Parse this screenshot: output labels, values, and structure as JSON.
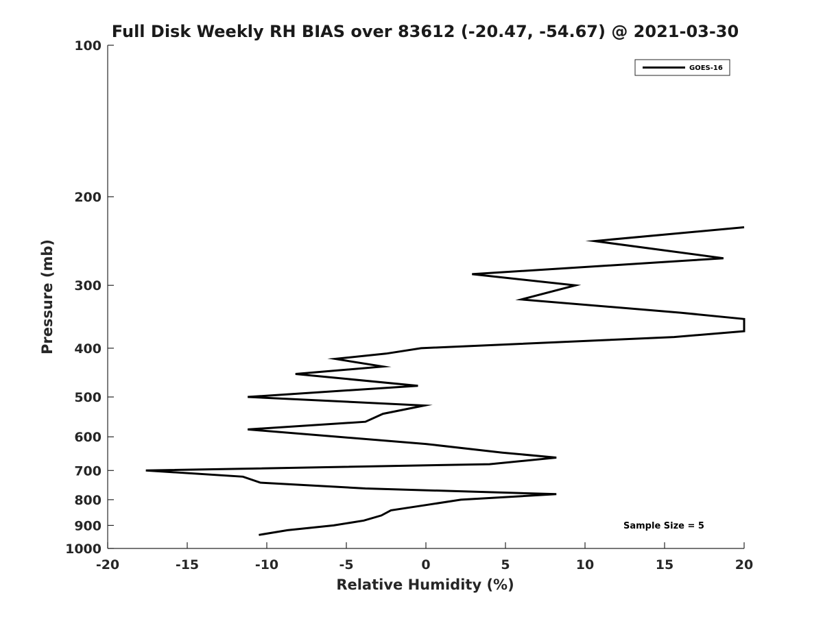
{
  "chart_data": {
    "type": "line",
    "title": "Full Disk Weekly RH BIAS over 83612 (-20.47, -54.67) @ 2021-03-30",
    "xlabel": "Relative Humidity (%)",
    "ylabel": "Pressure (mb)",
    "xlim": [
      -20,
      20
    ],
    "ylim": [
      100,
      1000
    ],
    "y_scale": "log",
    "y_reversed": true,
    "xticks": [
      -20,
      -15,
      -10,
      -5,
      0,
      5,
      10,
      15,
      20
    ],
    "xtick_labels": [
      "-20",
      "-15",
      "-10",
      "-5",
      "0",
      "5",
      "10",
      "15",
      "20"
    ],
    "yticks": [
      100,
      200,
      300,
      400,
      500,
      600,
      700,
      800,
      900,
      1000
    ],
    "ytick_labels": [
      "100",
      "200",
      "300",
      "400",
      "500",
      "600",
      "700",
      "800",
      "900",
      "1000"
    ],
    "legend_position": "top-right",
    "grid": false,
    "series": [
      {
        "name": "GOES-16",
        "color": "#000000",
        "points": [
          {
            "p": 230,
            "rh": 20.0
          },
          {
            "p": 245,
            "rh": 10.6
          },
          {
            "p": 265,
            "rh": 18.7
          },
          {
            "p": 285,
            "rh": 2.9
          },
          {
            "p": 300,
            "rh": 9.4
          },
          {
            "p": 320,
            "rh": 6.0
          },
          {
            "p": 340,
            "rh": 16.0
          },
          {
            "p": 350,
            "rh": 20.0
          },
          {
            "p": 370,
            "rh": 20.0
          },
          {
            "p": 380,
            "rh": 15.6
          },
          {
            "p": 400,
            "rh": -0.3
          },
          {
            "p": 410,
            "rh": -2.5
          },
          {
            "p": 420,
            "rh": -5.7
          },
          {
            "p": 435,
            "rh": -2.7
          },
          {
            "p": 450,
            "rh": -8.2
          },
          {
            "p": 475,
            "rh": -0.5
          },
          {
            "p": 500,
            "rh": -11.2
          },
          {
            "p": 520,
            "rh": -0.1
          },
          {
            "p": 540,
            "rh": -2.7
          },
          {
            "p": 560,
            "rh": -3.8
          },
          {
            "p": 580,
            "rh": -11.2
          },
          {
            "p": 620,
            "rh": 0.0
          },
          {
            "p": 645,
            "rh": 4.8
          },
          {
            "p": 660,
            "rh": 8.2
          },
          {
            "p": 680,
            "rh": 4.0
          },
          {
            "p": 700,
            "rh": -17.6
          },
          {
            "p": 720,
            "rh": -11.5
          },
          {
            "p": 740,
            "rh": -10.4
          },
          {
            "p": 760,
            "rh": -3.8
          },
          {
            "p": 780,
            "rh": 8.2
          },
          {
            "p": 800,
            "rh": 2.2
          },
          {
            "p": 820,
            "rh": 0.0
          },
          {
            "p": 840,
            "rh": -2.2
          },
          {
            "p": 860,
            "rh": -2.8
          },
          {
            "p": 880,
            "rh": -3.9
          },
          {
            "p": 900,
            "rh": -5.8
          },
          {
            "p": 920,
            "rh": -8.7
          },
          {
            "p": 940,
            "rh": -10.5
          }
        ]
      }
    ],
    "annotation": "Sample Size = 5"
  }
}
